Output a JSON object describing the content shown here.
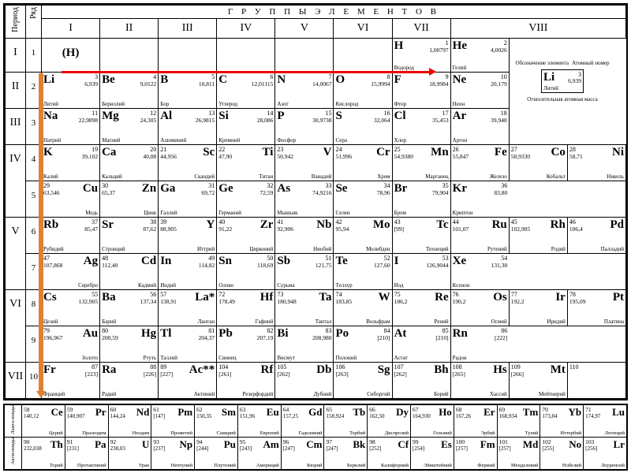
{
  "header_title": "Г Р У П П Ы   Э Л Е М Е Н Т О В",
  "period_label": "Период",
  "row_label": "Ряд",
  "group_headers": [
    "I",
    "II",
    "III",
    "IV",
    "V",
    "VI",
    "VII",
    "VIII",
    "VIII",
    "VIII"
  ],
  "periods": [
    "I",
    "II",
    "III",
    "IV",
    "V",
    "VI",
    "VII"
  ],
  "rows": [
    "1",
    "2",
    "3",
    "4",
    "5",
    "6",
    "7",
    "8",
    "9",
    "10"
  ],
  "legend": {
    "sym_label": "Обозначение элемента",
    "z_label": "Атомный номер",
    "mass_label": "Относительная атомная масса",
    "ex_sym": "Li",
    "ex_z": "3",
    "ex_mass": "6,939",
    "ex_name": "Литий"
  },
  "cells": {
    "r1": [
      {
        "sym": "(H)",
        "h": true
      },
      null,
      null,
      null,
      null,
      null,
      {
        "sym": "H",
        "z": "1",
        "mass": "1,00797",
        "name": "Водород"
      },
      {
        "sym": "He",
        "z": "2",
        "mass": "4,0026",
        "name": "Гелий"
      },
      {
        "legend": true
      }
    ],
    "r2": [
      {
        "sym": "Li",
        "z": "3",
        "mass": "6,939",
        "name": "Литий"
      },
      {
        "sym": "Be",
        "z": "4",
        "mass": "9,0122",
        "name": "Бериллий"
      },
      {
        "sym": "B",
        "z": "5",
        "mass": "10,811",
        "name": "Бор"
      },
      {
        "sym": "C",
        "z": "6",
        "mass": "12,01115",
        "name": "Углерод"
      },
      {
        "sym": "N",
        "z": "7",
        "mass": "14,0067",
        "name": "Азот"
      },
      {
        "sym": "O",
        "z": "8",
        "mass": "15,9994",
        "name": "Кислород"
      },
      {
        "sym": "F",
        "z": "9",
        "mass": "18,9984",
        "name": "Фтор"
      },
      {
        "sym": "Ne",
        "z": "10",
        "mass": "20,179",
        "name": "Неон"
      }
    ],
    "r3": [
      {
        "sym": "Na",
        "z": "11",
        "mass": "22,9898",
        "name": "Натрий"
      },
      {
        "sym": "Mg",
        "z": "12",
        "mass": "24,305",
        "name": "Магний"
      },
      {
        "sym": "Al",
        "z": "13",
        "mass": "26,9815",
        "name": "Алюминий"
      },
      {
        "sym": "Si",
        "z": "14",
        "mass": "28,086",
        "name": "Кремний"
      },
      {
        "sym": "P",
        "z": "15",
        "mass": "30,9738",
        "name": "Фосфор"
      },
      {
        "sym": "S",
        "z": "16",
        "mass": "32,064",
        "name": "Сера"
      },
      {
        "sym": "Cl",
        "z": "17",
        "mass": "35,453",
        "name": "Хлор"
      },
      {
        "sym": "Ar",
        "z": "18",
        "mass": "39,948",
        "name": "Аргон"
      }
    ],
    "r4": [
      {
        "sym": "K",
        "z": "19",
        "mass": "39,102",
        "name": "Калий"
      },
      {
        "sym": "Ca",
        "z": "20",
        "mass": "40,08",
        "name": "Кальций"
      },
      {
        "sym": "Sc",
        "z": "21",
        "mass": "44,956",
        "name": "Скандий",
        "r": true
      },
      {
        "sym": "Ti",
        "z": "22",
        "mass": "47,90",
        "name": "Титан",
        "r": true
      },
      {
        "sym": "V",
        "z": "23",
        "mass": "50,942",
        "name": "Ванадий",
        "r": true
      },
      {
        "sym": "Cr",
        "z": "24",
        "mass": "51,996",
        "name": "Хром",
        "r": true
      },
      {
        "sym": "Mn",
        "z": "25",
        "mass": "54,9380",
        "name": "Марганец",
        "r": true
      },
      {
        "sym": "Fe",
        "z": "26",
        "mass": "55,847",
        "name": "Железо",
        "r": true
      },
      {
        "sym": "Co",
        "z": "27",
        "mass": "58,9330",
        "name": "Кобальт",
        "r": true
      },
      {
        "sym": "Ni",
        "z": "28",
        "mass": "58,71",
        "name": "Никель",
        "r": true
      }
    ],
    "r5": [
      {
        "sym": "Cu",
        "z": "29",
        "mass": "63,546",
        "name": "Медь",
        "r": true
      },
      {
        "sym": "Zn",
        "z": "30",
        "mass": "65,37",
        "name": "Цинк",
        "r": true
      },
      {
        "sym": "Ga",
        "z": "31",
        "mass": "69,72",
        "name": "Галлий"
      },
      {
        "sym": "Ge",
        "z": "32",
        "mass": "72,59",
        "name": "Германий"
      },
      {
        "sym": "As",
        "z": "33",
        "mass": "74,9216",
        "name": "Мышьяк"
      },
      {
        "sym": "Se",
        "z": "34",
        "mass": "78,96",
        "name": "Селен"
      },
      {
        "sym": "Br",
        "z": "35",
        "mass": "79,904",
        "name": "Бром"
      },
      {
        "sym": "Kr",
        "z": "36",
        "mass": "83,80",
        "name": "Криптон"
      }
    ],
    "r6": [
      {
        "sym": "Rb",
        "z": "37",
        "mass": "85,47",
        "name": "Рубидий"
      },
      {
        "sym": "Sr",
        "z": "38",
        "mass": "87,62",
        "name": "Стронций"
      },
      {
        "sym": "Y",
        "z": "39",
        "mass": "88,905",
        "name": "Иттрий",
        "r": true
      },
      {
        "sym": "Zr",
        "z": "40",
        "mass": "91,22",
        "name": "Цирконий",
        "r": true
      },
      {
        "sym": "Nb",
        "z": "41",
        "mass": "92,906",
        "name": "Ниобий",
        "r": true
      },
      {
        "sym": "Mo",
        "z": "42",
        "mass": "95,94",
        "name": "Молибден",
        "r": true
      },
      {
        "sym": "Tc",
        "z": "43",
        "mass": "[99]",
        "name": "Технеций",
        "r": true
      },
      {
        "sym": "Ru",
        "z": "44",
        "mass": "101,07",
        "name": "Рутений",
        "r": true
      },
      {
        "sym": "Rh",
        "z": "45",
        "mass": "102,905",
        "name": "Родий",
        "r": true
      },
      {
        "sym": "Pd",
        "z": "46",
        "mass": "106,4",
        "name": "Палладий",
        "r": true
      }
    ],
    "r7": [
      {
        "sym": "Ag",
        "z": "47",
        "mass": "107,868",
        "name": "Серебро",
        "r": true
      },
      {
        "sym": "Cd",
        "z": "48",
        "mass": "112,40",
        "name": "Кадмий",
        "r": true
      },
      {
        "sym": "In",
        "z": "49",
        "mass": "114,82",
        "name": "Индий"
      },
      {
        "sym": "Sn",
        "z": "50",
        "mass": "118,69",
        "name": "Олово"
      },
      {
        "sym": "Sb",
        "z": "51",
        "mass": "121,75",
        "name": "Сурьма"
      },
      {
        "sym": "Te",
        "z": "52",
        "mass": "127,60",
        "name": "Теллур"
      },
      {
        "sym": "I",
        "z": "53",
        "mass": "126,9044",
        "name": "Иод"
      },
      {
        "sym": "Xe",
        "z": "54",
        "mass": "131,30",
        "name": "Ксенон"
      }
    ],
    "r8": [
      {
        "sym": "Cs",
        "z": "55",
        "mass": "132,905",
        "name": "Цезий"
      },
      {
        "sym": "Ba",
        "z": "56",
        "mass": "137,34",
        "name": "Барий"
      },
      {
        "sym": "La*",
        "z": "57",
        "mass": "138,91",
        "name": "Лантан",
        "r": true
      },
      {
        "sym": "Hf",
        "z": "72",
        "mass": "178,49",
        "name": "Гафний",
        "r": true
      },
      {
        "sym": "Ta",
        "z": "73",
        "mass": "180,948",
        "name": "Тантал",
        "r": true
      },
      {
        "sym": "W",
        "z": "74",
        "mass": "183,85",
        "name": "Вольфрам",
        "r": true
      },
      {
        "sym": "Re",
        "z": "75",
        "mass": "186,2",
        "name": "Рений",
        "r": true
      },
      {
        "sym": "Os",
        "z": "76",
        "mass": "190,2",
        "name": "Осмий",
        "r": true
      },
      {
        "sym": "Ir",
        "z": "77",
        "mass": "192,2",
        "name": "Иридий",
        "r": true
      },
      {
        "sym": "Pt",
        "z": "78",
        "mass": "195,09",
        "name": "Платина",
        "r": true
      }
    ],
    "r9": [
      {
        "sym": "Au",
        "z": "79",
        "mass": "196,967",
        "name": "Золото",
        "r": true
      },
      {
        "sym": "Hg",
        "z": "80",
        "mass": "200,59",
        "name": "Ртуть",
        "r": true
      },
      {
        "sym": "Tl",
        "z": "81",
        "mass": "204,37",
        "name": "Таллий"
      },
      {
        "sym": "Pb",
        "z": "82",
        "mass": "207,19",
        "name": "Свинец"
      },
      {
        "sym": "Bi",
        "z": "83",
        "mass": "208,980",
        "name": "Висмут"
      },
      {
        "sym": "Po",
        "z": "84",
        "mass": "[210]",
        "name": "Полоний"
      },
      {
        "sym": "At",
        "z": "85",
        "mass": "[210]",
        "name": "Астат"
      },
      {
        "sym": "Rn",
        "z": "86",
        "mass": "[222]",
        "name": "Радон"
      }
    ],
    "r10": [
      {
        "sym": "Fr",
        "z": "87",
        "mass": "[223]",
        "name": "Франций"
      },
      {
        "sym": "Ra",
        "z": "88",
        "mass": "[226]",
        "name": "Радий"
      },
      {
        "sym": "Ac**",
        "z": "89",
        "mass": "[227]",
        "name": "Актиний",
        "r": true
      },
      {
        "sym": "Rf",
        "z": "104",
        "mass": "[261]",
        "name": "Резерфордий",
        "r": true
      },
      {
        "sym": "Db",
        "z": "105",
        "mass": "[262]",
        "name": "Дубний",
        "r": true
      },
      {
        "sym": "Sg",
        "z": "106",
        "mass": "[263]",
        "name": "Сиборгий",
        "r": true
      },
      {
        "sym": "Bh",
        "z": "107",
        "mass": "[262]",
        "name": "Борий",
        "r": true
      },
      {
        "sym": "Hs",
        "z": "108",
        "mass": "[265]",
        "name": "Хассий",
        "r": true
      },
      {
        "sym": "Mt",
        "z": "109",
        "mass": "[266]",
        "name": "Мейтнерий",
        "r": true
      },
      {
        "sym": "",
        "z": "110",
        "mass": "",
        "name": "",
        "r": true
      }
    ]
  },
  "lanthanides_label": "Ланта-ноиды",
  "actinides_label": "Акти-ноиды",
  "lanthanides": [
    {
      "sym": "Ce",
      "z": "58",
      "mass": "140,12",
      "name": "Церий"
    },
    {
      "sym": "Pr",
      "z": "59",
      "mass": "140,907",
      "name": "Празеодим"
    },
    {
      "sym": "Nd",
      "z": "60",
      "mass": "144,24",
      "name": "Неодим"
    },
    {
      "sym": "Pm",
      "z": "61",
      "mass": "[147]",
      "name": "Прометий"
    },
    {
      "sym": "Sm",
      "z": "62",
      "mass": "150,35",
      "name": "Самарий"
    },
    {
      "sym": "Eu",
      "z": "63",
      "mass": "151,96",
      "name": "Европий"
    },
    {
      "sym": "Gd",
      "z": "64",
      "mass": "157,25",
      "name": "Гадолиний"
    },
    {
      "sym": "Tb",
      "z": "65",
      "mass": "158,924",
      "name": "Тербий"
    },
    {
      "sym": "Dy",
      "z": "66",
      "mass": "162,50",
      "name": "Диспрозий"
    },
    {
      "sym": "Ho",
      "z": "67",
      "mass": "164,930",
      "name": "Гольмий"
    },
    {
      "sym": "Er",
      "z": "68",
      "mass": "167,26",
      "name": "Эрбий"
    },
    {
      "sym": "Tm",
      "z": "69",
      "mass": "168,934",
      "name": "Тулий"
    },
    {
      "sym": "Yb",
      "z": "70",
      "mass": "173,04",
      "name": "Иттербий"
    },
    {
      "sym": "Lu",
      "z": "71",
      "mass": "174,97",
      "name": "Лютеций"
    }
  ],
  "actinides": [
    {
      "sym": "Th",
      "z": "90",
      "mass": "232,038",
      "name": "Торий"
    },
    {
      "sym": "Pa",
      "z": "91",
      "mass": "[231]",
      "name": "Протактиний"
    },
    {
      "sym": "U",
      "z": "92",
      "mass": "238,03",
      "name": "Уран"
    },
    {
      "sym": "Np",
      "z": "93",
      "mass": "[237]",
      "name": "Нептуний"
    },
    {
      "sym": "Pu",
      "z": "94",
      "mass": "[244]",
      "name": "Плутоний"
    },
    {
      "sym": "Am",
      "z": "95",
      "mass": "[243]",
      "name": "Америций"
    },
    {
      "sym": "Cm",
      "z": "96",
      "mass": "[247]",
      "name": "Кюрий"
    },
    {
      "sym": "Bk",
      "z": "97",
      "mass": "[247]",
      "name": "Берклий"
    },
    {
      "sym": "Cf",
      "z": "98",
      "mass": "[252]",
      "name": "Калифорний"
    },
    {
      "sym": "Es",
      "z": "99",
      "mass": "[254]",
      "name": "Эйнштейний"
    },
    {
      "sym": "Fm",
      "z": "100",
      "mass": "[257]",
      "name": "Фермий"
    },
    {
      "sym": "Md",
      "z": "101",
      "mass": "[257]",
      "name": "Менделевий"
    },
    {
      "sym": "No",
      "z": "102",
      "mass": "[255]",
      "name": "Нобелий"
    },
    {
      "sym": "Lr",
      "z": "103",
      "mass": "[256]",
      "name": "Лоуренсий"
    }
  ],
  "style": {
    "arrow_h_color": "#e00000",
    "arrow_v_color": "#e08030",
    "border_color": "#000000",
    "bg_color": "#ffffff"
  }
}
